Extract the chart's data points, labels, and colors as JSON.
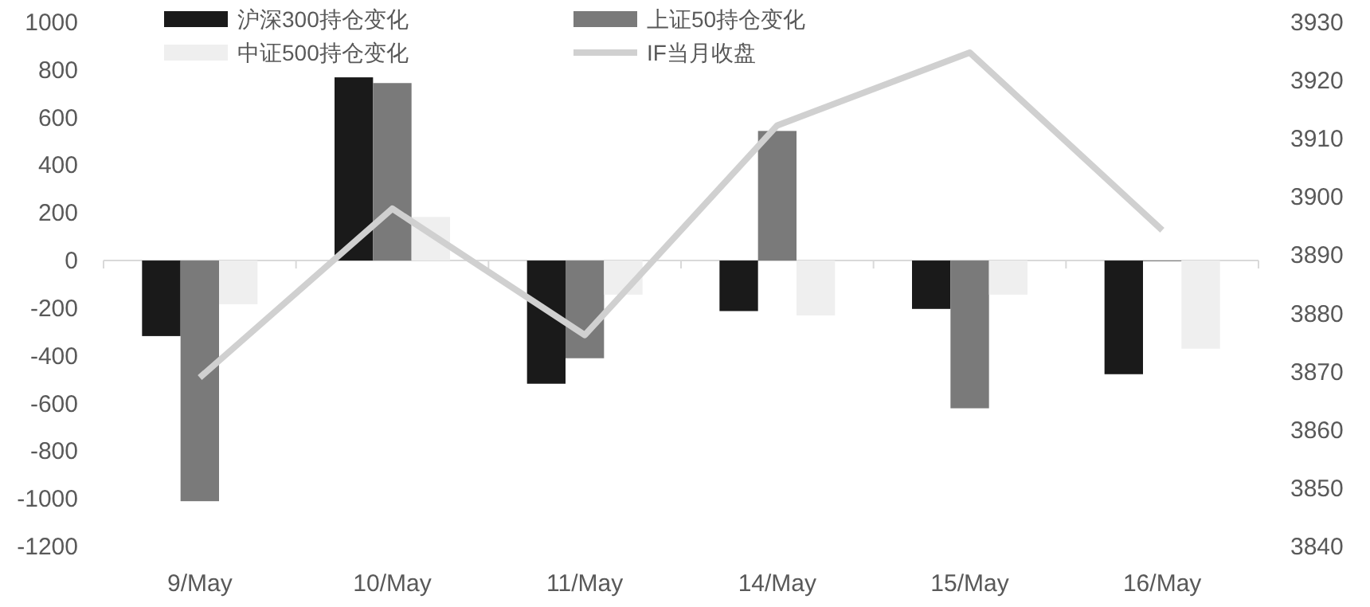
{
  "chart_data": {
    "type": "bar",
    "categories": [
      "9/May",
      "10/May",
      "11/May",
      "14/May",
      "15/May",
      "16/May"
    ],
    "series": [
      {
        "name": "沪深300持仓变化",
        "color": "#1a1a1a",
        "values": [
          -317,
          769,
          -517,
          -212,
          -203,
          -477
        ]
      },
      {
        "name": "上证50持仓变化",
        "color": "#7a7a7a",
        "values": [
          -1010,
          745,
          -410,
          544,
          -620,
          -3
        ]
      },
      {
        "name": "中证500持仓变化",
        "color": "#efefef",
        "values": [
          -183,
          183,
          -143,
          -230,
          -143,
          -370
        ]
      },
      {
        "name": "IF当月收盘",
        "color": "#d0d0d0",
        "type": "line",
        "axis": "y2",
        "values": [
          3869,
          3898,
          3876.3,
          3912.3,
          3924.8,
          3894.3
        ]
      }
    ],
    "ylim": [
      -1200,
      1000
    ],
    "yticks": [
      -1200,
      -1000,
      -800,
      -600,
      -400,
      -200,
      0,
      200,
      400,
      600,
      800,
      1000
    ],
    "y2lim": [
      3840,
      3930
    ],
    "y2ticks": [
      3840,
      3850,
      3860,
      3870,
      3880,
      3890,
      3900,
      3910,
      3920,
      3930
    ],
    "legend": "top"
  }
}
